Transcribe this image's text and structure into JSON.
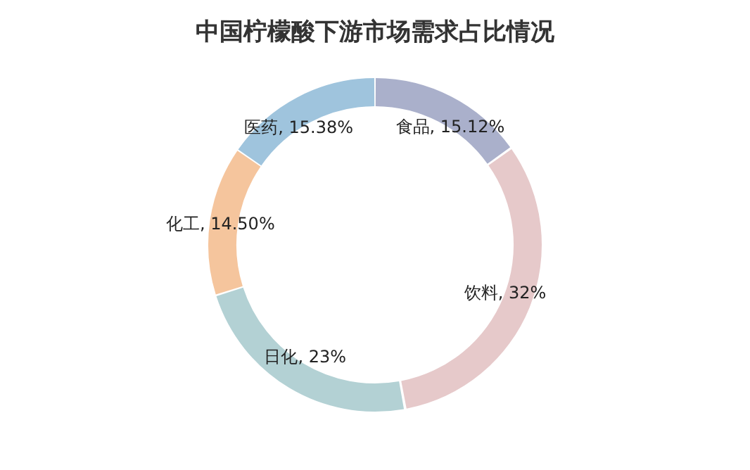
{
  "chart_data": {
    "type": "donut",
    "title": "中国柠檬酸下游市场需求占比情况",
    "categories": [
      "食品",
      "饮料",
      "日化",
      "化工",
      "医药"
    ],
    "values": [
      15.12,
      32,
      23,
      14.5,
      15.38
    ],
    "colors": [
      "#aab0cb",
      "#e6c9ca",
      "#b3d1d4",
      "#f5c59d",
      "#9fc4dd"
    ],
    "value_labels": [
      "15.12%",
      "32%",
      "23%",
      "14.50%",
      "15.38%"
    ],
    "legend": false
  }
}
